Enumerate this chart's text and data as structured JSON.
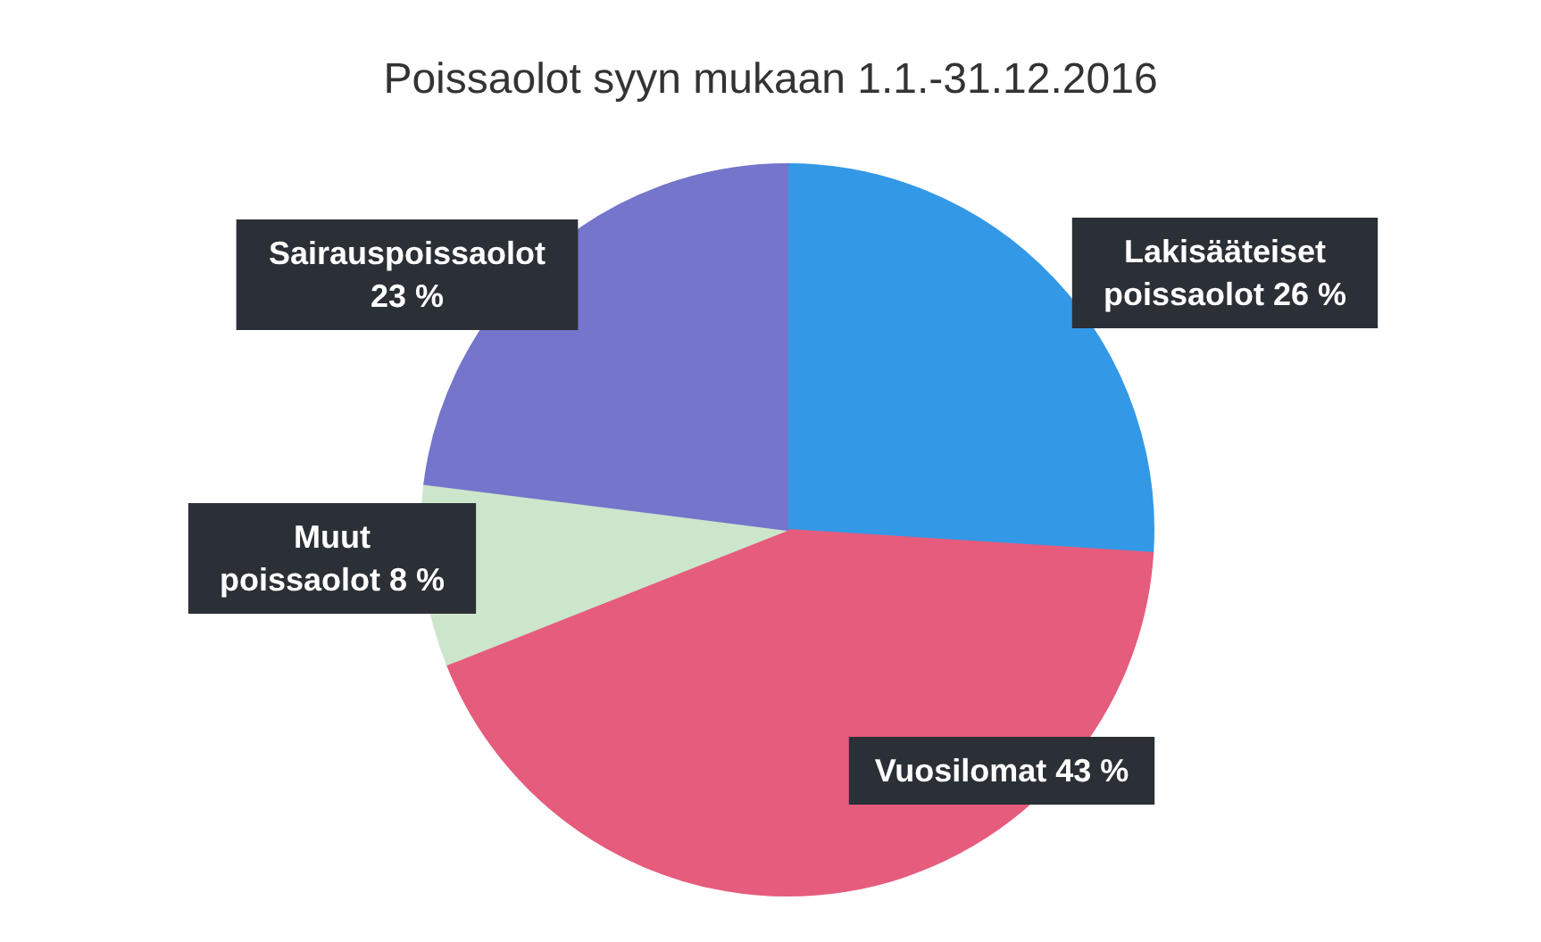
{
  "chart_data": {
    "type": "pie",
    "title": "Poissaolot syyn mukaan 1.1.-31.12.2016",
    "categories": [
      "Lakisääteiset poissaolot",
      "Vuosilomat",
      "Muut poissaolot",
      "Sairauspoissaolot"
    ],
    "values": [
      26,
      43,
      8,
      23
    ],
    "colors": [
      "#3399e6",
      "#e65c7d",
      "#cce6cc",
      "#7575cc"
    ],
    "value_labels": [
      "26 %",
      "43 %",
      "8 %",
      "23 %"
    ]
  }
}
